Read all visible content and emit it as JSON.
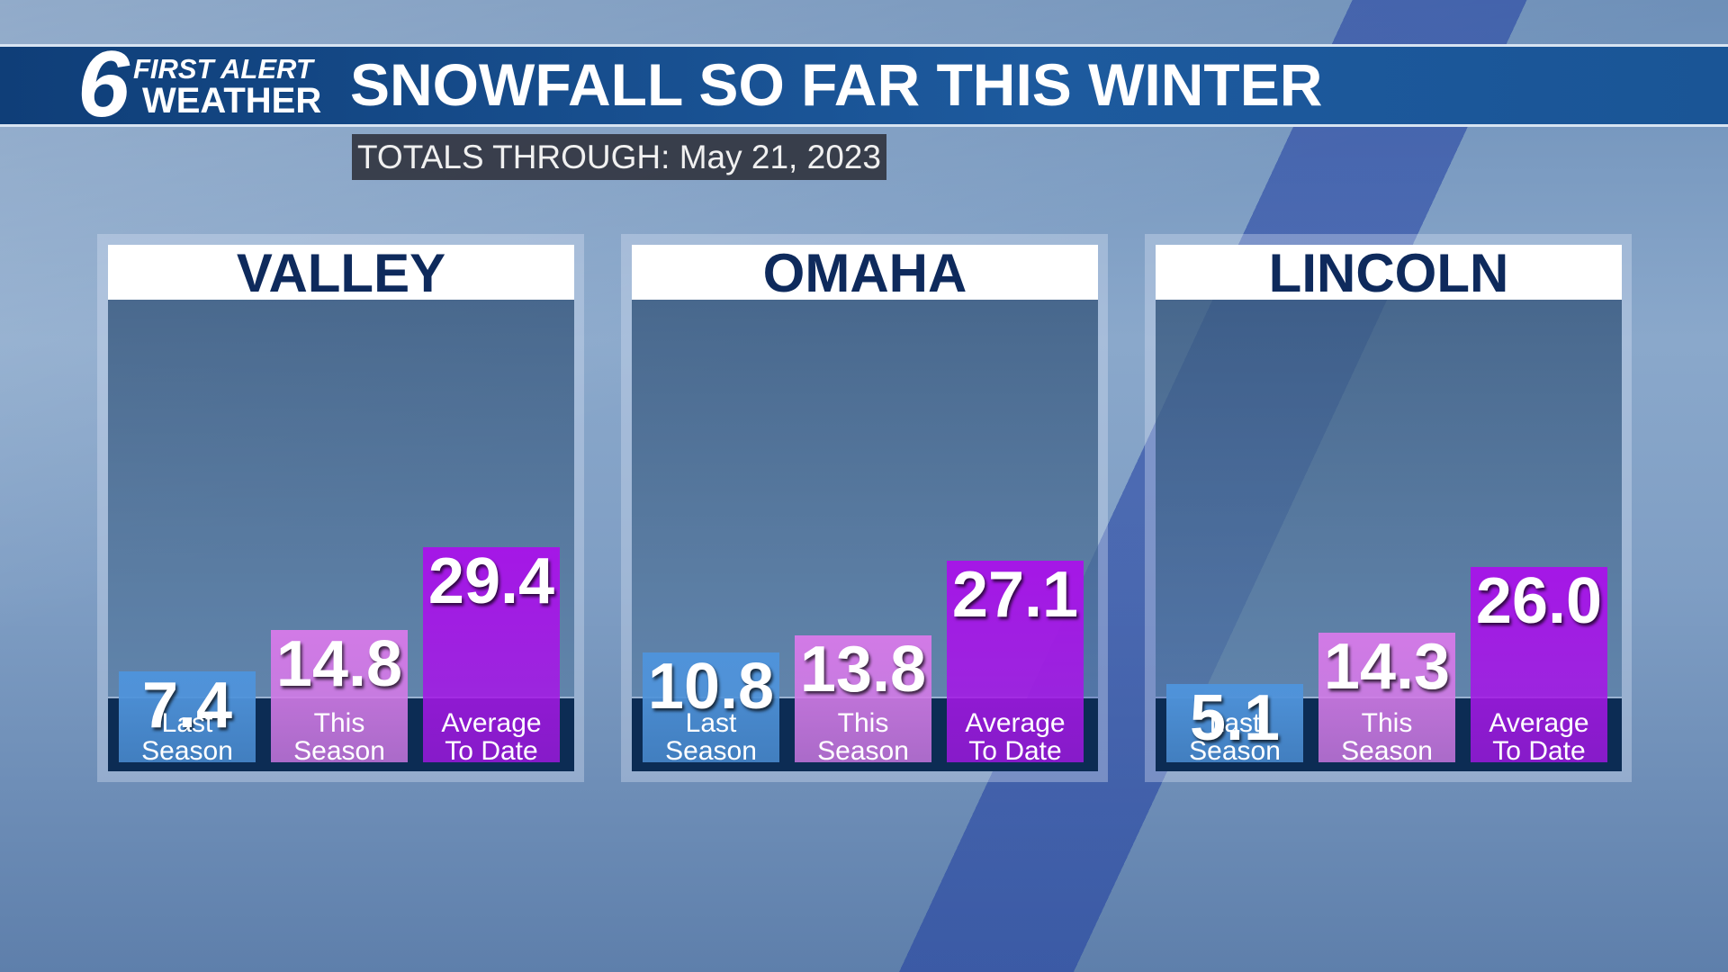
{
  "logo": {
    "number": "6",
    "line1": "FIRST ALERT",
    "line2": "WEATHER"
  },
  "title": "SNOWFALL SO FAR THIS WINTER",
  "subtitle_label": "TOTALS THROUGH:",
  "subtitle_date": "May 21, 2023",
  "chart_data": [
    {
      "type": "bar",
      "title": "VALLEY",
      "categories": [
        "Last Season",
        "This Season",
        "Average To Date"
      ],
      "values": [
        7.4,
        14.8,
        29.4
      ],
      "colors": [
        "#4f93da",
        "#d27ae6",
        "#a517e6"
      ]
    },
    {
      "type": "bar",
      "title": "OMAHA",
      "categories": [
        "Last Season",
        "This Season",
        "Average To Date"
      ],
      "values": [
        10.8,
        13.8,
        27.1
      ],
      "colors": [
        "#4f93da",
        "#d27ae6",
        "#a517e6"
      ]
    },
    {
      "type": "bar",
      "title": "LINCOLN",
      "categories": [
        "Last Season",
        "This Season",
        "Average To Date"
      ],
      "values": [
        5.1,
        14.3,
        26
      ],
      "value_labels": [
        "5.1",
        "14.3",
        "26.0"
      ],
      "colors": [
        "#4f93da",
        "#d27ae6",
        "#a517e6"
      ]
    }
  ]
}
